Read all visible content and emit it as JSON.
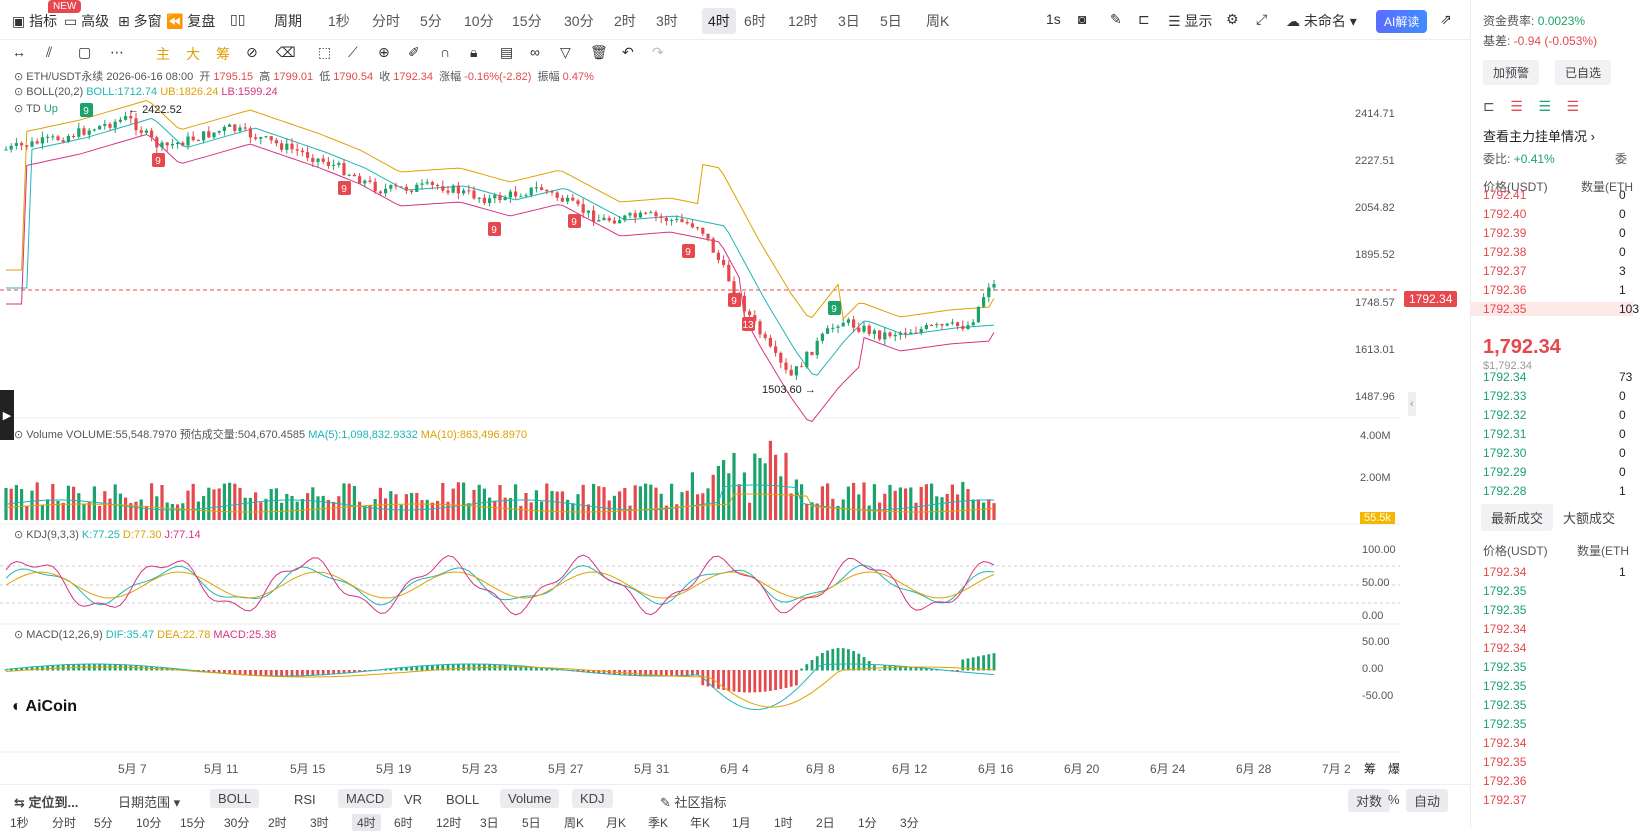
{
  "topbar": {
    "new_badge": "NEW",
    "indicator": "指标",
    "advanced": "高级",
    "multiwin": "多窗",
    "replay": "复盘",
    "period": "周期",
    "timeframes": [
      "1秒",
      "分时",
      "5分",
      "10分",
      "15分",
      "30分",
      "2时",
      "3时",
      "4时",
      "6时",
      "12时",
      "3日",
      "5日",
      "周K"
    ],
    "active_tf": "4时",
    "interval": "1s",
    "display": "显示",
    "unnamed": "未命名",
    "ai": "AI解读"
  },
  "drawbar": {
    "main": "主",
    "big": "大",
    "chip": "筹"
  },
  "legend": {
    "symbol": "ETH/USDT永续 2026-06-16 08:00",
    "open_label": "开",
    "open": "1795.15",
    "high_label": "高",
    "high": "1799.01",
    "low_label": "低",
    "low": "1790.54",
    "close_label": "收",
    "close": "1792.34",
    "chg_label": "涨幅",
    "chg": "-0.16%(-2.82)",
    "amp_label": "振幅",
    "amp": "0.47%",
    "boll": "BOLL(20,2)",
    "boll_mid": "BOLL:1712.74",
    "boll_ub": "UB:1826.24",
    "boll_lb": "LB:1599.24",
    "td": "TD",
    "td_up": "Up"
  },
  "annotations": {
    "high": "2422.52",
    "low": "1503.60",
    "td9": "9",
    "td13": "13"
  },
  "price_axis": [
    "2414.71",
    "2227.51",
    "2054.82",
    "1895.52",
    "1748.57",
    "1613.01",
    "1487.96"
  ],
  "current_price": "1792.34",
  "volume": {
    "title": "Volume",
    "value": "VOLUME:55,548.7970",
    "est": "预估成交量:504,670.4585",
    "ma5": "MA(5):1,098,832.9332",
    "ma10": "MA(10):863,496.8970",
    "axis": [
      "4.00M",
      "2.00M"
    ],
    "cur": "55.5k"
  },
  "kdj": {
    "title": "KDJ(9,3,3)",
    "k": "K:77.25",
    "d": "D:77.30",
    "j": "J:77.14",
    "axis": [
      "100.00",
      "50.00",
      "0.00"
    ]
  },
  "macd": {
    "title": "MACD(12,26,9)",
    "dif": "DIF:35.47",
    "dea": "DEA:22.78",
    "macd": "MACD:25.38",
    "axis": [
      "50.00",
      "0.00",
      "-50.00"
    ]
  },
  "logo": "AiCoin",
  "x_axis": [
    "5月 7",
    "5月 11",
    "5月 15",
    "5月 19",
    "5月 23",
    "5月 27",
    "5月 31",
    "6月 4",
    "6月 8",
    "6月 12",
    "6月 16",
    "6月 20",
    "6月 24",
    "6月 28",
    "7月 2"
  ],
  "x_extra": [
    "筹",
    "爆"
  ],
  "tabbar": {
    "locate": "定位到...",
    "daterange": "日期范围",
    "boll_sel": "BOLL",
    "tabs": [
      "RSI",
      "MACD",
      "VR",
      "BOLL",
      "Volume",
      "KDJ"
    ],
    "community": "社区指标",
    "log": "对数",
    "pct": "%",
    "auto": "自动"
  },
  "tfbar": [
    "1秒",
    "分时",
    "5分",
    "10分",
    "15分",
    "30分",
    "2时",
    "3时",
    "4时",
    "6时",
    "12时",
    "3日",
    "5日",
    "周K",
    "月K",
    "季K",
    "年K",
    "1月",
    "1时",
    "2日",
    "1分",
    "3分"
  ],
  "tfbar_active": "4时",
  "right_panel": {
    "funding_label": "资金费率:",
    "funding": "0.0023%",
    "basis_label": "基差:",
    "basis": "-0.94 (-0.053%)",
    "alert": "加预警",
    "watch": "已自选",
    "depth_link": "查看主力挂单情况",
    "ratio_label": "委比:",
    "ratio": "+0.41%",
    "ratio2": "委",
    "col_price": "价格(USDT)",
    "col_qty": "数量(ETH",
    "asks": [
      "1792.41",
      "1792.40",
      "1792.39",
      "1792.38",
      "1792.37",
      "1792.36",
      "1792.35"
    ],
    "ask_qty": [
      "0",
      "0",
      "0",
      "0",
      "3",
      "1",
      "103"
    ],
    "last": "1,792.34",
    "last_usd": "$1,792.34",
    "bids": [
      "1792.34",
      "1792.33",
      "1792.32",
      "1792.31",
      "1792.30",
      "1792.29",
      "1792.28"
    ],
    "bid_qty": [
      "73",
      "0",
      "0",
      "0",
      "0",
      "0",
      "1"
    ],
    "tab_latest": "最新成交",
    "tab_big": "大额成交",
    "trade_col_price": "价格(USDT)",
    "trade_col_qty": "数量(ETH",
    "trades": [
      "1792.34",
      "1792.35",
      "1792.35",
      "1792.34",
      "1792.34",
      "1792.35",
      "1792.35",
      "1792.35",
      "1792.35",
      "1792.34",
      "1792.35",
      "1792.36",
      "1792.37"
    ],
    "trade_sides": [
      "sell",
      "buy",
      "buy",
      "sell",
      "sell",
      "buy",
      "buy",
      "buy",
      "buy",
      "sell",
      "sell",
      "sell",
      "sell"
    ],
    "trade_qty_first": "1"
  },
  "colors": {
    "up": "#1ba36b",
    "down": "#e5484d",
    "boll_ub": "#e0a100",
    "boll_mid": "#1fb5b5",
    "boll_lb": "#d63384"
  }
}
